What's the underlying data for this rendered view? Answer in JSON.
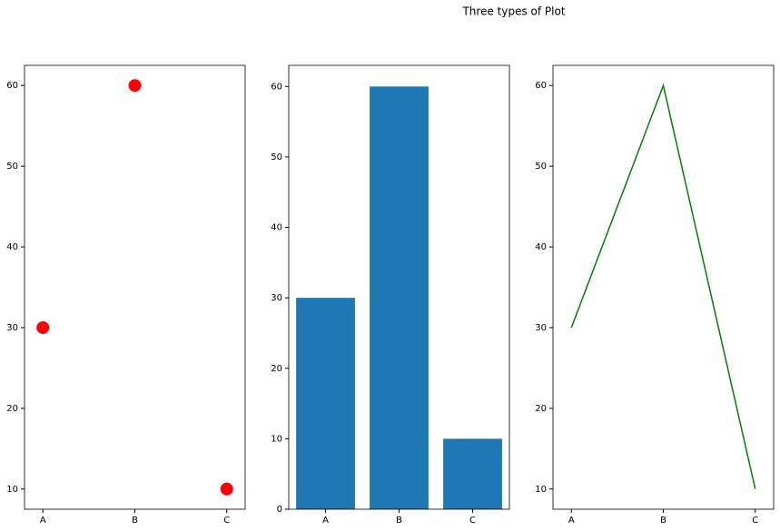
{
  "title": "Three types of Plot",
  "chart_data": [
    {
      "type": "scatter",
      "categories": [
        "A",
        "B",
        "C"
      ],
      "values": [
        30,
        60,
        10
      ],
      "color": "#ff0000",
      "ylim": [
        7.5,
        62.5
      ],
      "yticks": [
        10,
        20,
        30,
        40,
        50,
        60
      ]
    },
    {
      "type": "bar",
      "categories": [
        "A",
        "B",
        "C"
      ],
      "values": [
        30,
        60,
        10
      ],
      "color": "#1f77b4",
      "ylim": [
        0,
        63
      ],
      "yticks": [
        0,
        10,
        20,
        30,
        40,
        50,
        60
      ]
    },
    {
      "type": "line",
      "categories": [
        "A",
        "B",
        "C"
      ],
      "values": [
        30,
        60,
        10
      ],
      "color": "#008000",
      "ylim": [
        7.5,
        62.5
      ],
      "yticks": [
        10,
        20,
        30,
        40,
        50,
        60
      ]
    }
  ]
}
